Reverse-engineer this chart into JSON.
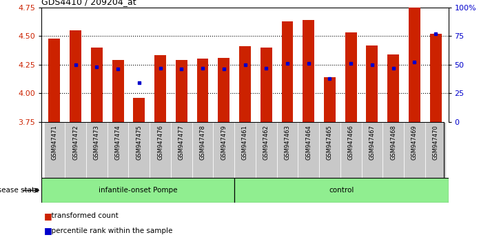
{
  "title": "GDS4410 / 209204_at",
  "samples": [
    "GSM947471",
    "GSM947472",
    "GSM947473",
    "GSM947474",
    "GSM947475",
    "GSM947476",
    "GSM947477",
    "GSM947478",
    "GSM947479",
    "GSM947461",
    "GSM947462",
    "GSM947463",
    "GSM947464",
    "GSM947465",
    "GSM947466",
    "GSM947467",
    "GSM947468",
    "GSM947469",
    "GSM947470"
  ],
  "bar_heights": [
    4.48,
    4.55,
    4.4,
    4.29,
    3.96,
    4.33,
    4.29,
    4.3,
    4.31,
    4.41,
    4.4,
    4.63,
    4.64,
    4.14,
    4.53,
    4.42,
    4.34,
    4.75,
    4.52
  ],
  "blue_dot_values": [
    null,
    4.25,
    4.23,
    4.21,
    4.09,
    4.22,
    4.21,
    4.22,
    4.21,
    4.25,
    4.22,
    4.26,
    4.26,
    4.13,
    4.26,
    4.25,
    4.22,
    4.27,
    4.52
  ],
  "groups": [
    {
      "label": "infantile-onset Pompe",
      "start": 0,
      "end": 9,
      "color": "#90EE90"
    },
    {
      "label": "control",
      "start": 9,
      "end": 19,
      "color": "#90EE90"
    }
  ],
  "bar_color": "#CC2200",
  "blue_dot_color": "#0000CC",
  "ylim_left": [
    3.75,
    4.75
  ],
  "ylim_right": [
    0,
    100
  ],
  "yticks_left": [
    3.75,
    4.0,
    4.25,
    4.5,
    4.75
  ],
  "yticks_right": [
    0,
    25,
    50,
    75,
    100
  ],
  "grid_values": [
    4.0,
    4.25,
    4.5
  ],
  "plot_bg_color": "#ffffff",
  "xtick_bg_color": "#c8c8c8",
  "bar_width": 0.55,
  "disease_state_label": "disease state",
  "legend_items": [
    {
      "label": "transformed count",
      "color": "#CC2200"
    },
    {
      "label": "percentile rank within the sample",
      "color": "#0000CC"
    }
  ]
}
